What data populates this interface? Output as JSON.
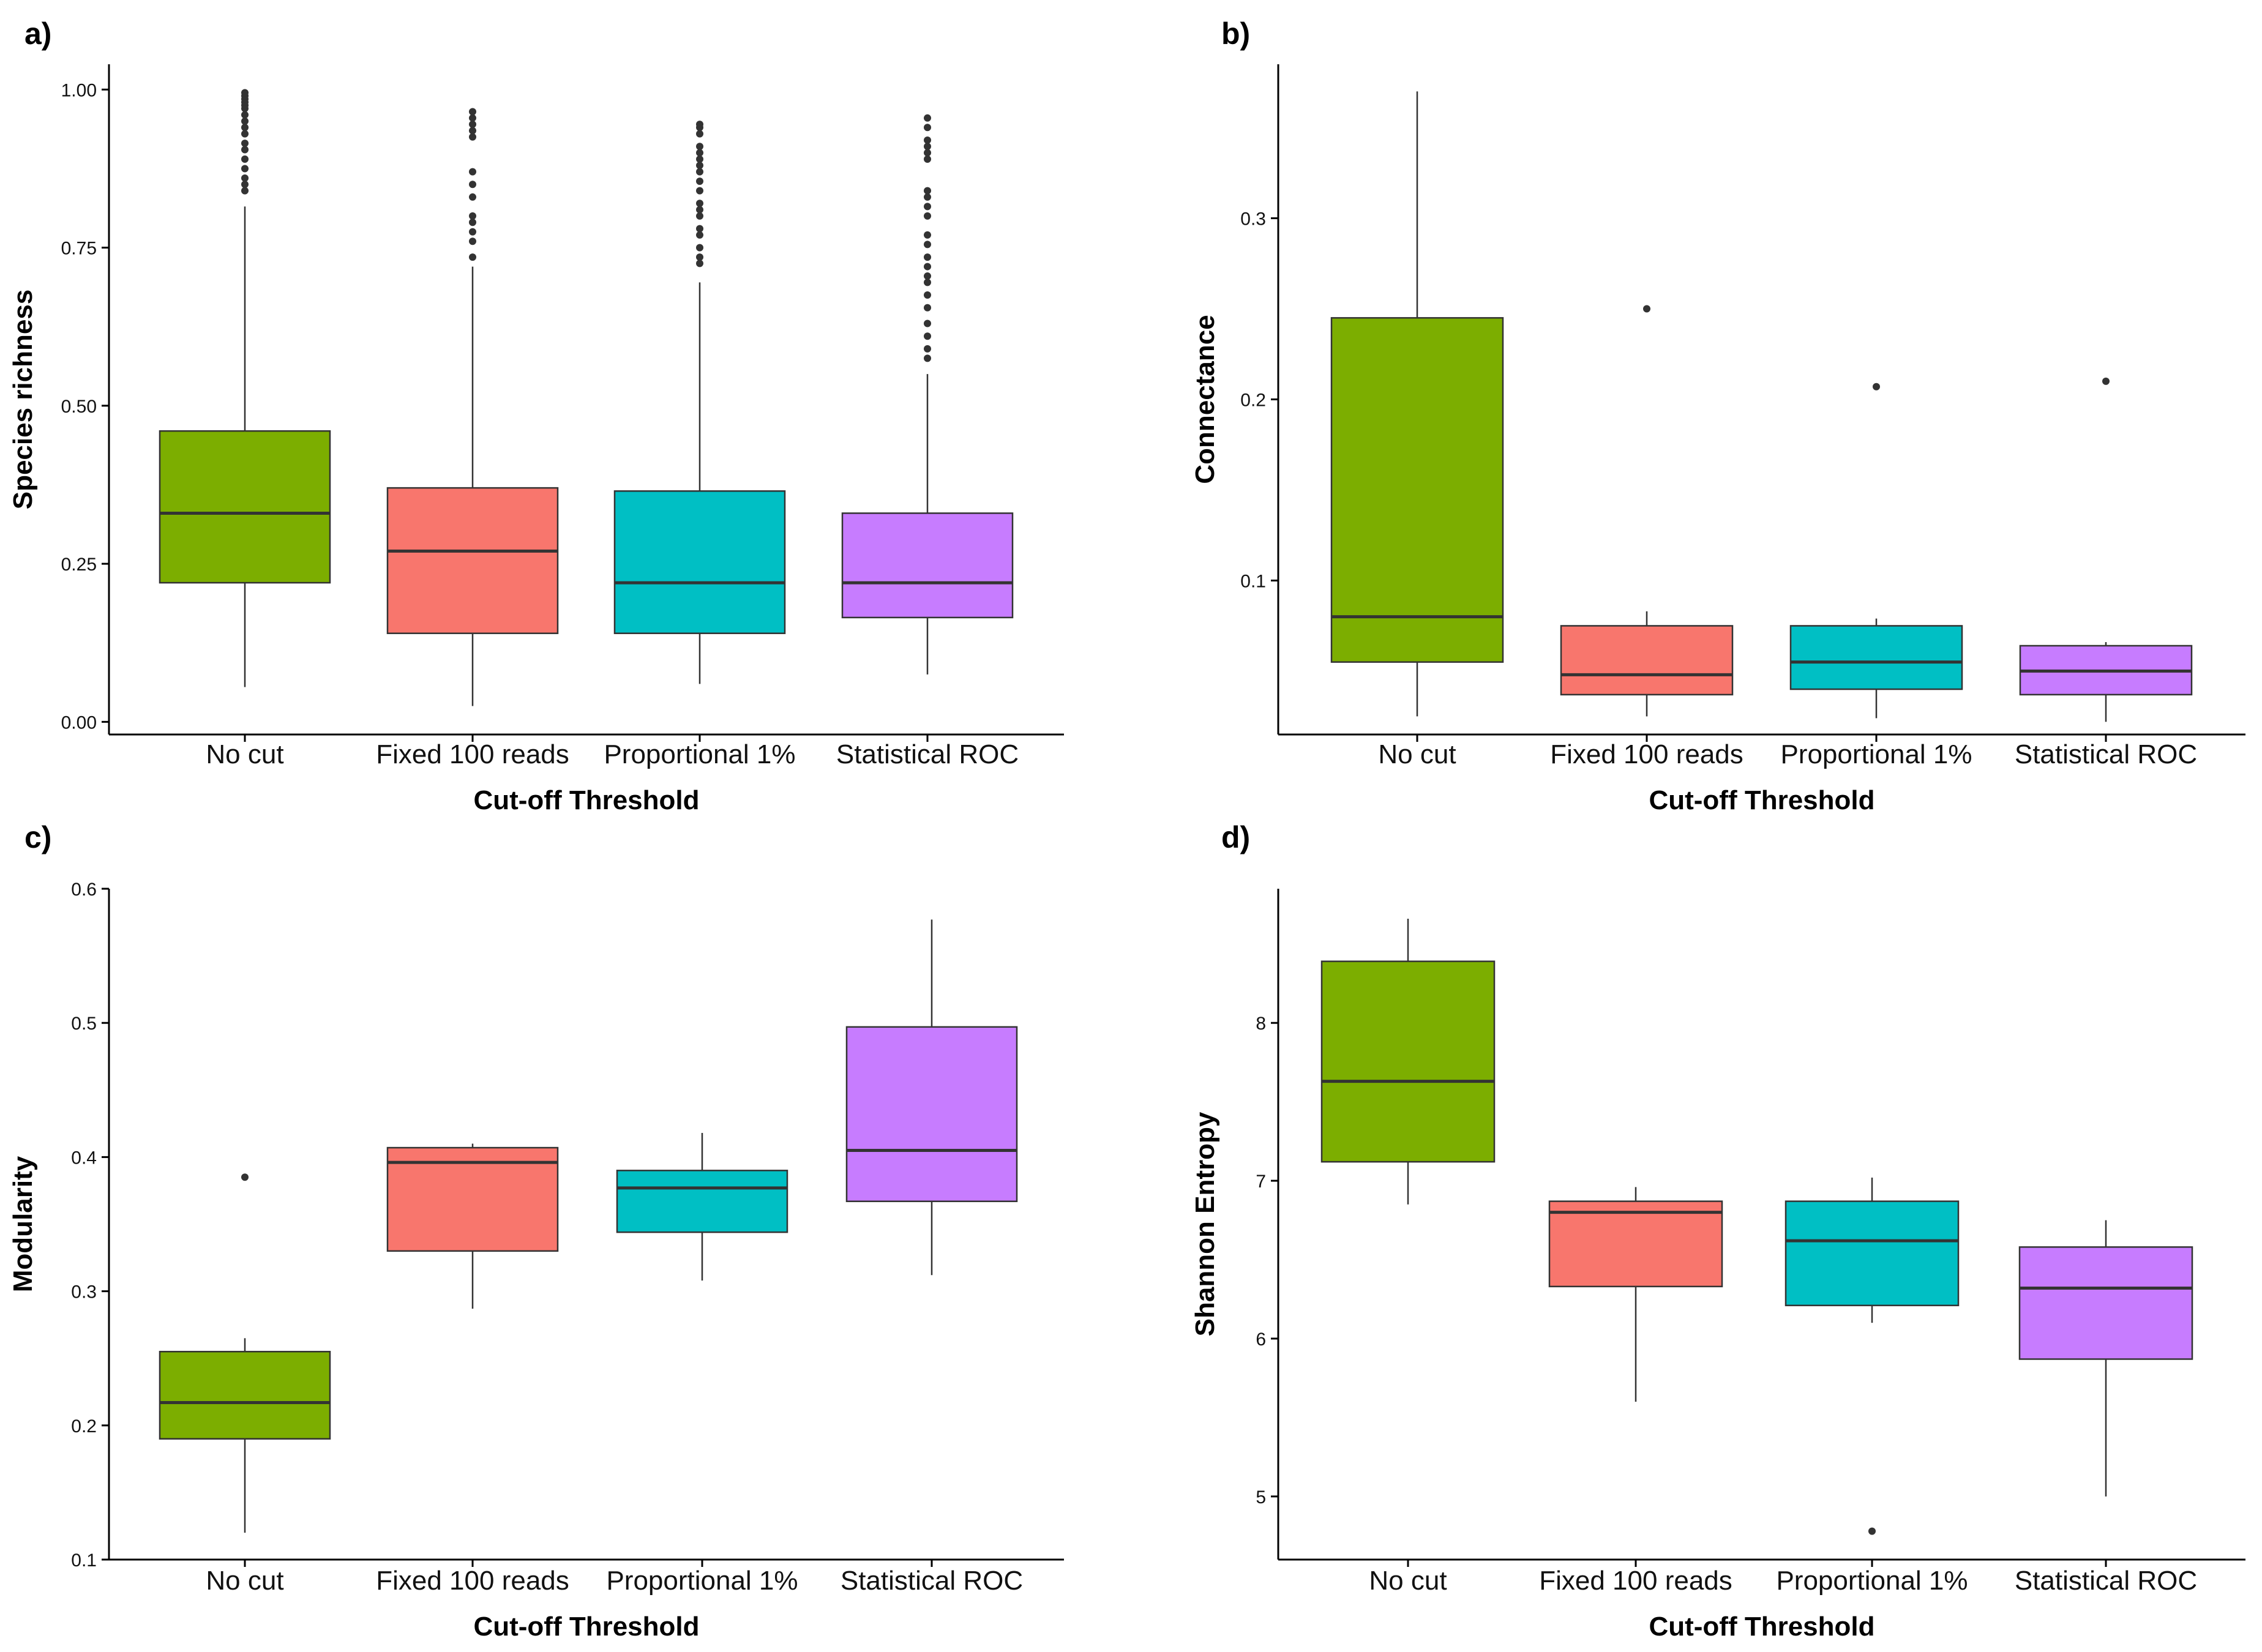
{
  "figure": {
    "colors": {
      "no_cut": "#7CAE00",
      "fixed_100_reads": "#F8766D",
      "proportional_1pct": "#00BFC4",
      "statistical_roc": "#C77CFF",
      "median": "#333333",
      "outlier": "#333333",
      "axis": "#000000"
    }
  },
  "chart_data": [
    {
      "panel": "a)",
      "type": "box",
      "title": "",
      "xlabel": "Cut-off Threshold",
      "ylabel": "Species richness",
      "ylim": [
        -0.02,
        1.04
      ],
      "yticks": [
        0.0,
        0.25,
        0.5,
        0.75,
        1.0
      ],
      "ytick_labels": [
        "0.00",
        "0.25",
        "0.50",
        "0.75",
        "1.00"
      ],
      "categories": [
        "No cut",
        "Fixed 100 reads",
        "Proportional 1%",
        "Statistical ROC"
      ],
      "boxes": [
        {
          "q1": 0.22,
          "median": 0.33,
          "q3": 0.46,
          "whisker_low": 0.055,
          "whisker_high": 0.815,
          "outliers": [
            0.84,
            0.85,
            0.86,
            0.875,
            0.89,
            0.905,
            0.915,
            0.93,
            0.94,
            0.95,
            0.96,
            0.97,
            0.975,
            0.98,
            0.985,
            0.99,
            0.995
          ]
        },
        {
          "q1": 0.14,
          "median": 0.27,
          "q3": 0.37,
          "whisker_low": 0.025,
          "whisker_high": 0.72,
          "outliers": [
            0.735,
            0.76,
            0.775,
            0.79,
            0.8,
            0.83,
            0.85,
            0.87,
            0.925,
            0.935,
            0.945,
            0.955,
            0.965
          ]
        },
        {
          "q1": 0.14,
          "median": 0.22,
          "q3": 0.365,
          "whisker_low": 0.06,
          "whisker_high": 0.695,
          "outliers": [
            0.725,
            0.735,
            0.75,
            0.77,
            0.78,
            0.8,
            0.81,
            0.82,
            0.84,
            0.855,
            0.87,
            0.88,
            0.89,
            0.9,
            0.91,
            0.93,
            0.94,
            0.945
          ]
        },
        {
          "q1": 0.165,
          "median": 0.22,
          "q3": 0.33,
          "whisker_low": 0.075,
          "whisker_high": 0.55,
          "outliers": [
            0.575,
            0.59,
            0.61,
            0.63,
            0.655,
            0.675,
            0.695,
            0.705,
            0.72,
            0.735,
            0.755,
            0.77,
            0.8,
            0.815,
            0.83,
            0.84,
            0.89,
            0.9,
            0.91,
            0.92,
            0.94,
            0.955
          ]
        }
      ]
    },
    {
      "panel": "b)",
      "type": "box",
      "title": "",
      "xlabel": "Cut-off Threshold",
      "ylabel": "Connectance",
      "ylim": [
        0.015,
        0.385
      ],
      "yticks": [
        0.1,
        0.2,
        0.3
      ],
      "ytick_labels": [
        "0.1",
        "0.2",
        "0.3"
      ],
      "categories": [
        "No cut",
        "Fixed 100 reads",
        "Proportional 1%",
        "Statistical ROC"
      ],
      "boxes": [
        {
          "q1": 0.055,
          "median": 0.08,
          "q3": 0.245,
          "whisker_low": 0.025,
          "whisker_high": 0.37,
          "outliers": []
        },
        {
          "q1": 0.037,
          "median": 0.048,
          "q3": 0.075,
          "whisker_low": 0.025,
          "whisker_high": 0.083,
          "outliers": [
            0.25
          ]
        },
        {
          "q1": 0.04,
          "median": 0.055,
          "q3": 0.075,
          "whisker_low": 0.024,
          "whisker_high": 0.079,
          "outliers": [
            0.207
          ]
        },
        {
          "q1": 0.037,
          "median": 0.05,
          "q3": 0.064,
          "whisker_low": 0.022,
          "whisker_high": 0.066,
          "outliers": [
            0.21
          ]
        }
      ]
    },
    {
      "panel": "c)",
      "type": "box",
      "title": "",
      "xlabel": "Cut-off Threshold",
      "ylabel": "Modularity",
      "ylim": [
        0.1,
        0.6
      ],
      "yticks": [
        0.1,
        0.2,
        0.3,
        0.4,
        0.5,
        0.6
      ],
      "ytick_labels": [
        "0.1",
        "0.2",
        "0.3",
        "0.4",
        "0.5",
        "0.6"
      ],
      "categories": [
        "No cut",
        "Fixed 100 reads",
        "Proportional 1%",
        "Statistical ROC"
      ],
      "boxes": [
        {
          "q1": 0.19,
          "median": 0.217,
          "q3": 0.255,
          "whisker_low": 0.12,
          "whisker_high": 0.265,
          "outliers": [
            0.385
          ]
        },
        {
          "q1": 0.33,
          "median": 0.396,
          "q3": 0.407,
          "whisker_low": 0.287,
          "whisker_high": 0.41,
          "outliers": []
        },
        {
          "q1": 0.344,
          "median": 0.377,
          "q3": 0.39,
          "whisker_low": 0.308,
          "whisker_high": 0.418,
          "outliers": []
        },
        {
          "q1": 0.367,
          "median": 0.405,
          "q3": 0.497,
          "whisker_low": 0.312,
          "whisker_high": 0.577,
          "outliers": []
        }
      ]
    },
    {
      "panel": "d)",
      "type": "box",
      "title": "",
      "xlabel": "Cut-off Threshold",
      "ylabel": "Shannon Entropy",
      "ylim": [
        4.6,
        8.85
      ],
      "yticks": [
        5,
        6,
        7,
        8
      ],
      "ytick_labels": [
        "5",
        "6",
        "7",
        "8"
      ],
      "categories": [
        "No cut",
        "Fixed 100 reads",
        "Proportional 1%",
        "Statistical ROC"
      ],
      "boxes": [
        {
          "q1": 7.12,
          "median": 7.63,
          "q3": 8.39,
          "whisker_low": 6.85,
          "whisker_high": 8.66,
          "outliers": []
        },
        {
          "q1": 6.33,
          "median": 6.8,
          "q3": 6.87,
          "whisker_low": 5.6,
          "whisker_high": 6.96,
          "outliers": []
        },
        {
          "q1": 6.21,
          "median": 6.62,
          "q3": 6.87,
          "whisker_low": 6.1,
          "whisker_high": 7.02,
          "outliers": [
            4.78
          ]
        },
        {
          "q1": 5.87,
          "median": 6.32,
          "q3": 6.58,
          "whisker_low": 5.0,
          "whisker_high": 6.75,
          "outliers": []
        }
      ]
    }
  ]
}
